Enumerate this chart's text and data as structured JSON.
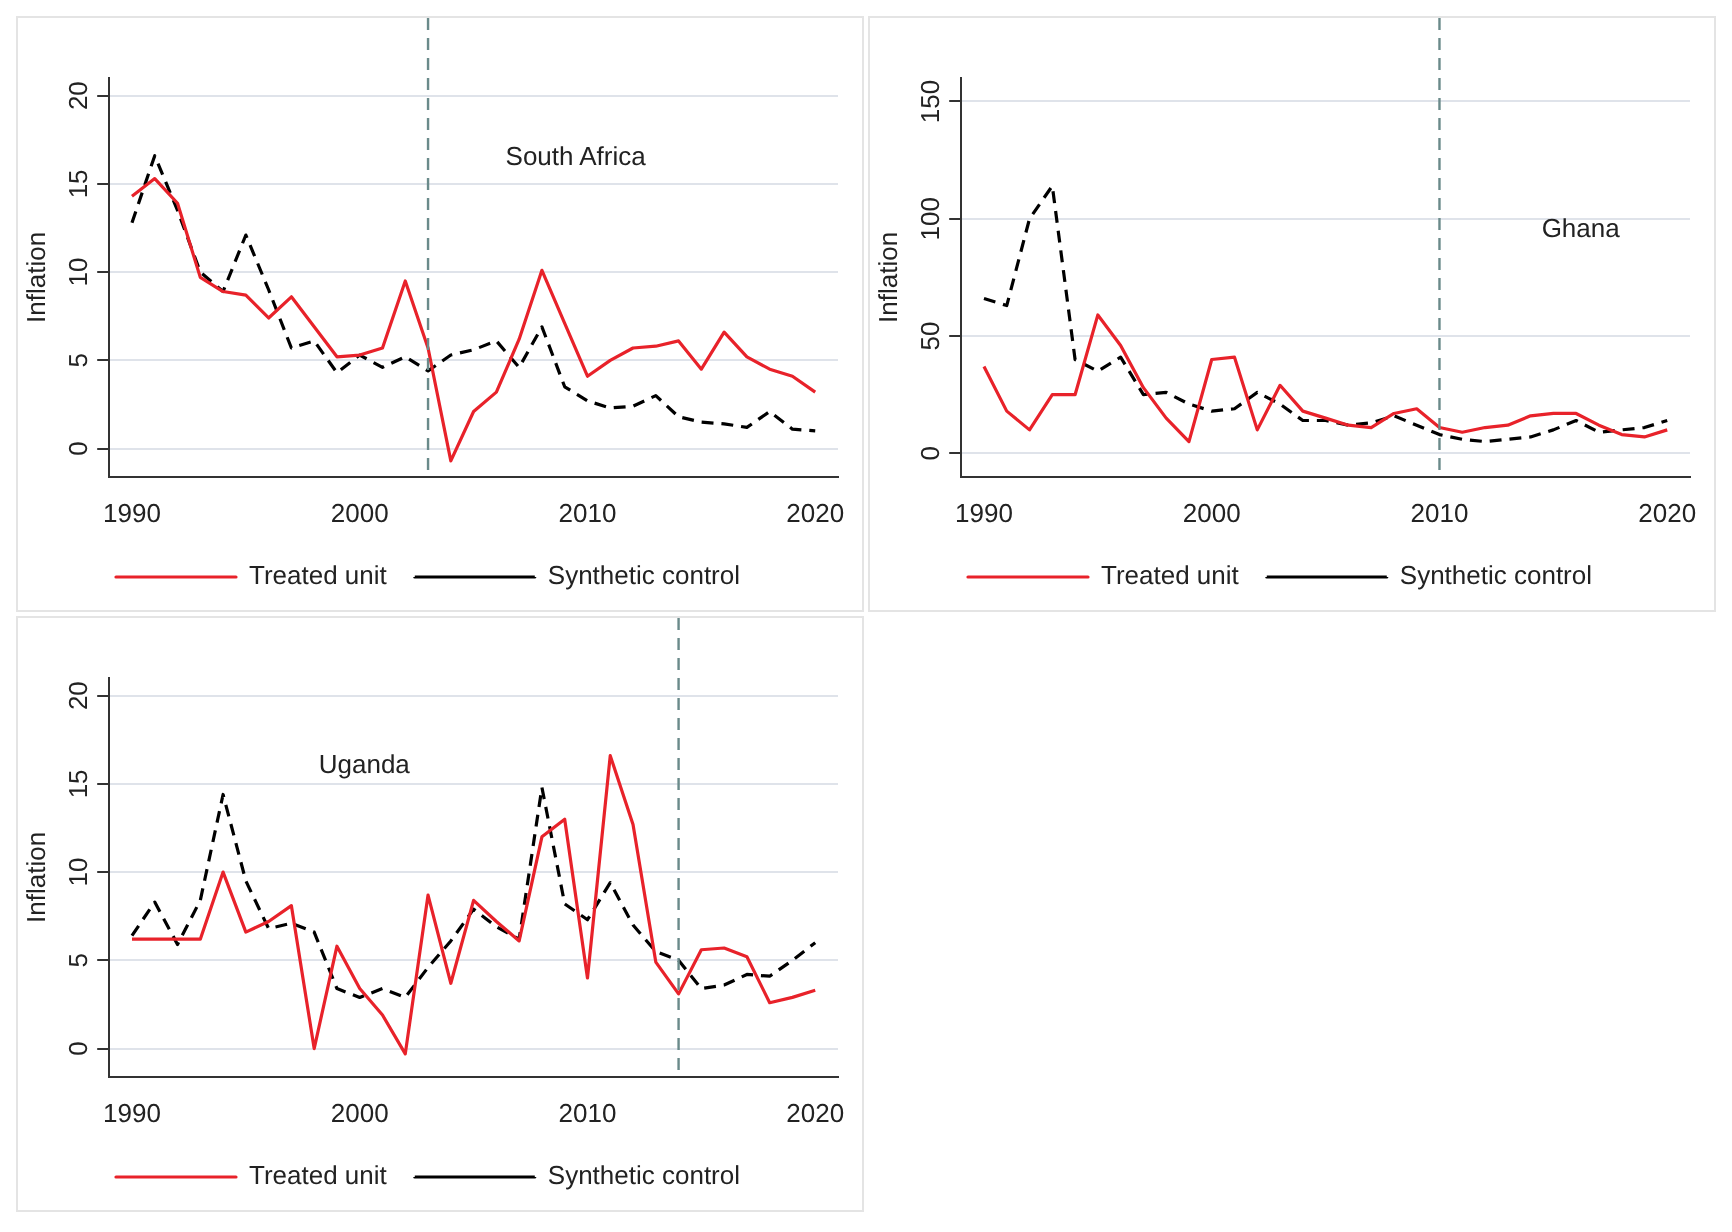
{
  "chart_data": [
    {
      "type": "line",
      "ylabel": "Inflation",
      "x": [
        1990,
        1991,
        1992,
        1993,
        1994,
        1995,
        1996,
        1997,
        1998,
        1999,
        2000,
        2001,
        2002,
        2003,
        2004,
        2005,
        2006,
        2007,
        2008,
        2009,
        2010,
        2011,
        2012,
        2013,
        2014,
        2015,
        2016,
        2017,
        2018,
        2019,
        2020
      ],
      "xlim": [
        1989,
        2021
      ],
      "xticks": [
        1990,
        2000,
        2010,
        2020
      ],
      "ylim": [
        -1.6,
        21
      ],
      "yticks": [
        0,
        5,
        10,
        15,
        20
      ],
      "grid": "y",
      "legend": "bottom",
      "marker": "none",
      "series": [
        {
          "name": "Treated unit",
          "color": "#e8222a",
          "line_style": "solid",
          "values": [
            14.3,
            15.3,
            13.9,
            9.7,
            8.9,
            8.7,
            7.4,
            8.6,
            6.9,
            5.2,
            5.3,
            5.7,
            9.5,
            5.7,
            -0.7,
            2.1,
            3.2,
            6.2,
            10.1,
            7.1,
            4.1,
            5.0,
            5.7,
            5.8,
            6.1,
            4.5,
            6.6,
            5.2,
            4.5,
            4.1,
            3.2
          ]
        },
        {
          "name": "Synthetic control",
          "color": "#000000",
          "line_style": "dashed",
          "values": [
            12.8,
            16.6,
            13.5,
            10.0,
            8.9,
            12.1,
            9.0,
            5.7,
            6.1,
            4.3,
            5.3,
            4.6,
            5.2,
            4.4,
            5.3,
            5.6,
            6.1,
            4.6,
            6.9,
            3.5,
            2.7,
            2.3,
            2.4,
            3.0,
            1.8,
            1.5,
            1.4,
            1.2,
            2.1,
            1.1,
            1.0
          ]
        }
      ],
      "ref_lines": [
        {
          "axis": "x",
          "value": 2003,
          "color": "#6a8a8a",
          "line_style": "dashed"
        }
      ],
      "annotations": [
        "South Africa"
      ]
    },
    {
      "type": "line",
      "ylabel": "Inflation",
      "x": [
        1990,
        1991,
        1992,
        1993,
        1994,
        1995,
        1996,
        1997,
        1998,
        1999,
        2000,
        2001,
        2002,
        2003,
        2004,
        2005,
        2006,
        2007,
        2008,
        2009,
        2010,
        2011,
        2012,
        2013,
        2014,
        2015,
        2016,
        2017,
        2018,
        2019,
        2020
      ],
      "xlim": [
        1989,
        2021
      ],
      "xticks": [
        1990,
        2000,
        2010,
        2020
      ],
      "ylim": [
        -10,
        160
      ],
      "yticks": [
        0,
        50,
        100,
        150
      ],
      "grid": "y",
      "legend": "bottom",
      "marker": "none",
      "series": [
        {
          "name": "Treated unit",
          "color": "#e8222a",
          "line_style": "solid",
          "values": [
            37,
            18,
            10,
            25,
            25,
            59,
            46,
            28,
            15,
            5,
            40,
            41,
            10,
            29,
            18,
            15,
            12,
            11,
            17,
            19,
            11,
            9,
            11,
            12,
            16,
            17,
            17,
            12,
            8,
            7,
            10
          ]
        },
        {
          "name": "Synthetic control",
          "color": "#000000",
          "line_style": "dashed",
          "values": [
            66,
            63,
            100,
            114,
            40,
            35,
            41,
            25,
            26,
            21,
            18,
            19,
            26,
            21,
            14,
            14,
            12,
            13,
            16,
            12,
            8,
            6,
            5,
            6,
            7,
            10,
            14,
            9,
            10,
            11,
            14
          ]
        }
      ],
      "ref_lines": [
        {
          "axis": "x",
          "value": 2010,
          "color": "#6a8a8a",
          "line_style": "dashed"
        }
      ],
      "annotations": [
        "Ghana"
      ]
    },
    {
      "type": "line",
      "ylabel": "Inflation",
      "x": [
        1990,
        1991,
        1992,
        1993,
        1994,
        1995,
        1996,
        1997,
        1998,
        1999,
        2000,
        2001,
        2002,
        2003,
        2004,
        2005,
        2006,
        2007,
        2008,
        2009,
        2010,
        2011,
        2012,
        2013,
        2014,
        2015,
        2016,
        2017,
        2018,
        2019,
        2020
      ],
      "xlim": [
        1989,
        2021
      ],
      "xticks": [
        1990,
        2000,
        2010,
        2020
      ],
      "ylim": [
        -1.6,
        21
      ],
      "yticks": [
        0,
        5,
        10,
        15,
        20
      ],
      "grid": "y",
      "legend": "bottom",
      "marker": "none",
      "series": [
        {
          "name": "Treated unit",
          "color": "#e8222a",
          "line_style": "solid",
          "values": [
            6.2,
            6.2,
            6.2,
            6.2,
            10.0,
            6.6,
            7.2,
            8.1,
            0.0,
            5.8,
            3.4,
            1.9,
            -0.3,
            8.7,
            3.7,
            8.4,
            7.2,
            6.1,
            12.0,
            13.0,
            4.0,
            16.6,
            12.7,
            4.9,
            3.1,
            5.6,
            5.7,
            5.2,
            2.6,
            2.9,
            3.3
          ]
        },
        {
          "name": "Synthetic control",
          "color": "#000000",
          "line_style": "dashed",
          "values": [
            6.4,
            8.3,
            5.9,
            8.4,
            14.4,
            9.5,
            6.8,
            7.1,
            6.6,
            3.4,
            2.9,
            3.4,
            2.9,
            4.6,
            6.1,
            7.9,
            6.9,
            6.2,
            14.8,
            8.2,
            7.3,
            9.4,
            7.0,
            5.5,
            5.0,
            3.4,
            3.6,
            4.2,
            4.1,
            5.0,
            6.0
          ]
        }
      ],
      "ref_lines": [
        {
          "axis": "x",
          "value": 2014,
          "color": "#6a8a8a",
          "line_style": "dashed"
        }
      ],
      "annotations": [
        "Uganda"
      ]
    }
  ]
}
